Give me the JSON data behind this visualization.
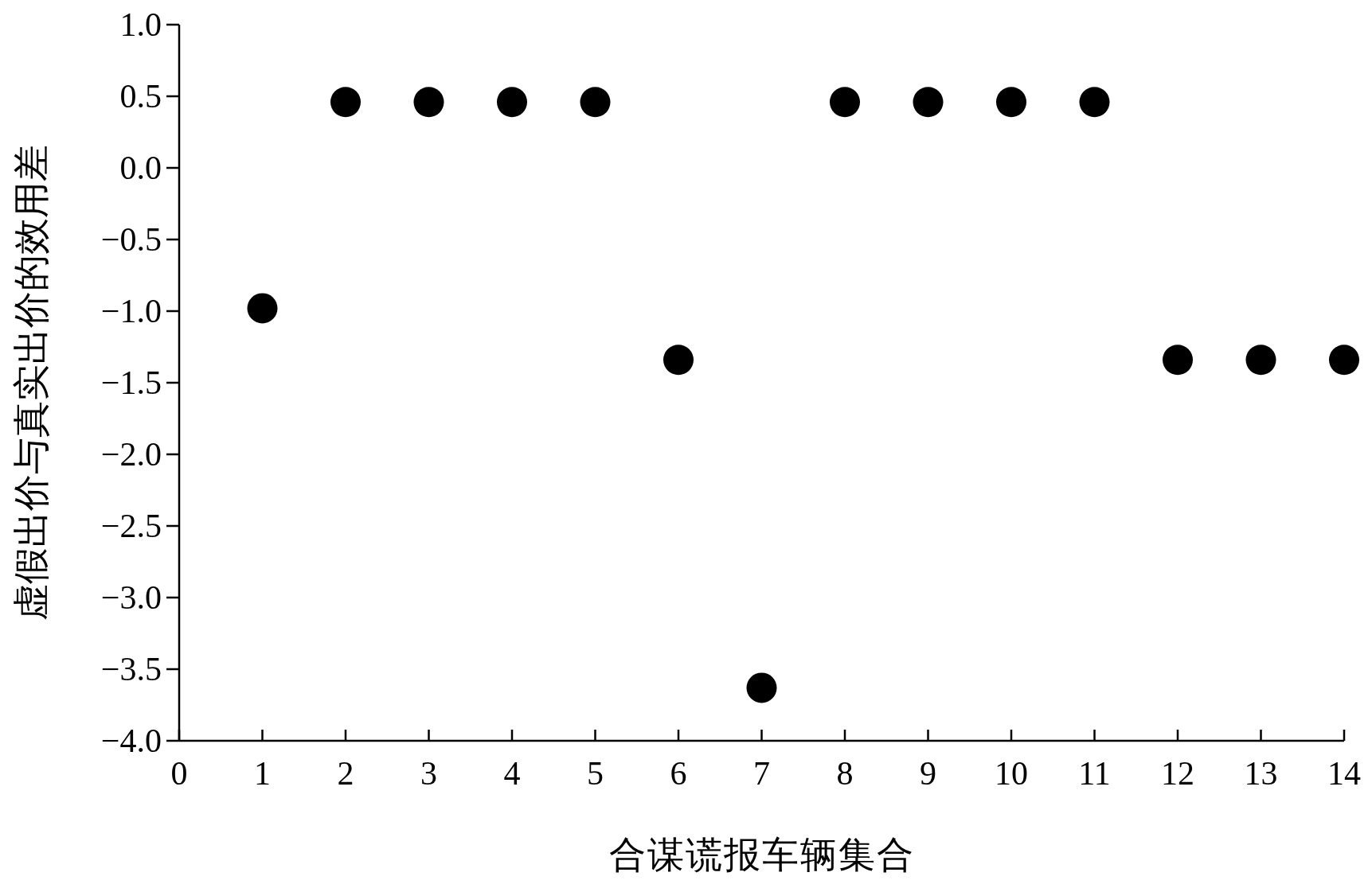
{
  "chart_data": {
    "type": "scatter",
    "xlabel": "合谋谎报车辆集合",
    "ylabel": "虚假出价与真实出价的效用差",
    "x": [
      1,
      2,
      3,
      4,
      5,
      6,
      7,
      8,
      9,
      10,
      11,
      12,
      13,
      14
    ],
    "series": [
      {
        "color": "#000000",
        "values": [
          -0.98,
          0.46,
          0.46,
          0.46,
          0.46,
          -1.34,
          -3.63,
          0.46,
          0.46,
          0.46,
          0.46,
          -1.34,
          -1.34,
          -1.34
        ]
      }
    ],
    "xlim": [
      0,
      14
    ],
    "xticks": [
      0,
      1,
      2,
      3,
      4,
      5,
      6,
      7,
      8,
      9,
      10,
      11,
      12,
      13,
      14
    ],
    "ylim": [
      -4,
      1
    ],
    "yticks": [
      {
        "value": -4,
        "label": "−4.0"
      },
      {
        "value": -3.5,
        "label": "−3.5"
      },
      {
        "value": -3,
        "label": "−3.0"
      },
      {
        "value": -2.5,
        "label": "−2.5"
      },
      {
        "value": -2,
        "label": "−2.0"
      },
      {
        "value": -1.5,
        "label": "−1.5"
      },
      {
        "value": -1,
        "label": "−1.0"
      },
      {
        "value": -0.5,
        "label": "−0.5"
      },
      {
        "value": 0,
        "label": "0.0"
      },
      {
        "value": 0.5,
        "label": "0.5"
      },
      {
        "value": 1,
        "label": "1.0"
      }
    ],
    "marker": "circle"
  }
}
